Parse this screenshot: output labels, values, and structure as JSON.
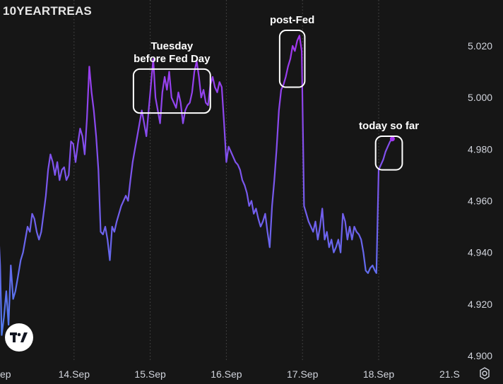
{
  "symbol": "10YEARTREAS",
  "colors": {
    "background": "#161616",
    "line_start": "#4f7bec",
    "line_end": "#a335ee",
    "gridline": "#4a4a4a",
    "annotation_box": "#ffffff"
  },
  "icons": {
    "logo": "tradingview-logo-icon",
    "settings": "gear-icon"
  },
  "chart_data": {
    "type": "line",
    "y_axis_position": "right",
    "ylim": [
      4.9,
      5.03
    ],
    "y_ticks": [
      "4.900",
      "4.920",
      "4.940",
      "4.960",
      "4.980",
      "5.000",
      "5.020"
    ],
    "x_ticks": [
      "ep",
      "14.Sep",
      "15.Sep",
      "16.Sep",
      "17.Sep",
      "18.Sep",
      "21.S"
    ],
    "x_tick_positions": [
      0,
      1,
      2,
      3,
      4,
      5,
      6
    ],
    "xlim": [
      0,
      6
    ],
    "grid": "vertical dotted at day boundaries",
    "series": [
      {
        "points": [
          [
            0.0,
            4.954
          ],
          [
            0.03,
            4.935
          ],
          [
            0.05,
            4.908
          ],
          [
            0.08,
            4.915
          ],
          [
            0.11,
            4.925
          ],
          [
            0.14,
            4.912
          ],
          [
            0.17,
            4.935
          ],
          [
            0.2,
            4.922
          ],
          [
            0.23,
            4.925
          ],
          [
            0.26,
            4.93
          ],
          [
            0.3,
            4.937
          ],
          [
            0.33,
            4.94
          ],
          [
            0.36,
            4.945
          ],
          [
            0.39,
            4.95
          ],
          [
            0.42,
            4.948
          ],
          [
            0.45,
            4.955
          ],
          [
            0.48,
            4.953
          ],
          [
            0.51,
            4.948
          ],
          [
            0.54,
            4.945
          ],
          [
            0.57,
            4.948
          ],
          [
            0.6,
            4.955
          ],
          [
            0.63,
            4.962
          ],
          [
            0.66,
            4.972
          ],
          [
            0.69,
            4.978
          ],
          [
            0.72,
            4.975
          ],
          [
            0.75,
            4.97
          ],
          [
            0.78,
            4.975
          ],
          [
            0.81,
            4.968
          ],
          [
            0.84,
            4.972
          ],
          [
            0.87,
            4.973
          ],
          [
            0.9,
            4.968
          ],
          [
            0.93,
            4.97
          ],
          [
            0.96,
            4.983
          ],
          [
            0.99,
            4.982
          ],
          [
            1.02,
            4.975
          ],
          [
            1.05,
            4.982
          ],
          [
            1.08,
            4.988
          ],
          [
            1.11,
            4.985
          ],
          [
            1.14,
            4.978
          ],
          [
            1.17,
            4.992
          ],
          [
            1.2,
            5.012
          ],
          [
            1.23,
            5.002
          ],
          [
            1.26,
            4.995
          ],
          [
            1.29,
            4.985
          ],
          [
            1.32,
            4.972
          ],
          [
            1.35,
            4.948
          ],
          [
            1.38,
            4.947
          ],
          [
            1.41,
            4.95
          ],
          [
            1.44,
            4.945
          ],
          [
            1.47,
            4.937
          ],
          [
            1.5,
            4.95
          ],
          [
            1.53,
            4.948
          ],
          [
            1.56,
            4.952
          ],
          [
            1.59,
            4.955
          ],
          [
            1.62,
            4.958
          ],
          [
            1.65,
            4.96
          ],
          [
            1.68,
            4.962
          ],
          [
            1.71,
            4.96
          ],
          [
            1.74,
            4.968
          ],
          [
            1.77,
            4.975
          ],
          [
            1.8,
            4.98
          ],
          [
            1.83,
            4.985
          ],
          [
            1.86,
            4.99
          ],
          [
            1.89,
            4.995
          ],
          [
            1.92,
            4.99
          ],
          [
            1.95,
            4.985
          ],
          [
            1.98,
            4.995
          ],
          [
            2.01,
            5.005
          ],
          [
            2.04,
            5.015
          ],
          [
            2.07,
            5.0
          ],
          [
            2.1,
            4.995
          ],
          [
            2.13,
            4.99
          ],
          [
            2.16,
            5.002
          ],
          [
            2.19,
            5.008
          ],
          [
            2.22,
            5.003
          ],
          [
            2.25,
            5.01
          ],
          [
            2.28,
            5.0
          ],
          [
            2.31,
            4.998
          ],
          [
            2.34,
            4.996
          ],
          [
            2.37,
            5.002
          ],
          [
            2.4,
            4.998
          ],
          [
            2.43,
            4.99
          ],
          [
            2.46,
            4.995
          ],
          [
            2.49,
            4.997
          ],
          [
            2.52,
            4.998
          ],
          [
            2.55,
            5.002
          ],
          [
            2.58,
            5.01
          ],
          [
            2.61,
            5.014
          ],
          [
            2.64,
            5.008
          ],
          [
            2.67,
            5.0
          ],
          [
            2.7,
            5.003
          ],
          [
            2.73,
            4.998
          ],
          [
            2.76,
            4.997
          ],
          [
            2.79,
            5.005
          ],
          [
            2.82,
            5.008
          ],
          [
            2.85,
            5.004
          ],
          [
            2.88,
            5.002
          ],
          [
            2.91,
            5.006
          ],
          [
            2.94,
            5.004
          ],
          [
            2.97,
            4.99
          ],
          [
            3.0,
            4.975
          ],
          [
            3.03,
            4.981
          ],
          [
            3.06,
            4.979
          ],
          [
            3.09,
            4.977
          ],
          [
            3.12,
            4.975
          ],
          [
            3.15,
            4.974
          ],
          [
            3.18,
            4.972
          ],
          [
            3.21,
            4.968
          ],
          [
            3.24,
            4.966
          ],
          [
            3.27,
            4.963
          ],
          [
            3.3,
            4.958
          ],
          [
            3.33,
            4.96
          ],
          [
            3.36,
            4.955
          ],
          [
            3.39,
            4.957
          ],
          [
            3.42,
            4.953
          ],
          [
            3.45,
            4.95
          ],
          [
            3.48,
            4.952
          ],
          [
            3.51,
            4.955
          ],
          [
            3.54,
            4.948
          ],
          [
            3.57,
            4.942
          ],
          [
            3.6,
            4.958
          ],
          [
            3.63,
            4.968
          ],
          [
            3.66,
            4.98
          ],
          [
            3.69,
            4.995
          ],
          [
            3.72,
            5.003
          ],
          [
            3.75,
            5.005
          ],
          [
            3.78,
            5.008
          ],
          [
            3.81,
            5.012
          ],
          [
            3.84,
            5.015
          ],
          [
            3.87,
            5.02
          ],
          [
            3.9,
            5.018
          ],
          [
            3.93,
            5.022
          ],
          [
            3.96,
            5.024
          ],
          [
            3.99,
            5.018
          ],
          [
            4.02,
            4.958
          ],
          [
            4.05,
            4.955
          ],
          [
            4.08,
            4.952
          ],
          [
            4.11,
            4.95
          ],
          [
            4.14,
            4.948
          ],
          [
            4.17,
            4.952
          ],
          [
            4.2,
            4.945
          ],
          [
            4.23,
            4.95
          ],
          [
            4.26,
            4.957
          ],
          [
            4.29,
            4.945
          ],
          [
            4.32,
            4.948
          ],
          [
            4.35,
            4.942
          ],
          [
            4.38,
            4.945
          ],
          [
            4.41,
            4.94
          ],
          [
            4.44,
            4.942
          ],
          [
            4.47,
            4.945
          ],
          [
            4.5,
            4.94
          ],
          [
            4.53,
            4.955
          ],
          [
            4.56,
            4.952
          ],
          [
            4.59,
            4.945
          ],
          [
            4.62,
            4.95
          ],
          [
            4.65,
            4.945
          ],
          [
            4.68,
            4.95
          ],
          [
            4.71,
            4.948
          ],
          [
            4.74,
            4.947
          ],
          [
            4.77,
            4.945
          ],
          [
            4.8,
            4.94
          ],
          [
            4.83,
            4.933
          ],
          [
            4.86,
            4.932
          ],
          [
            4.89,
            4.934
          ],
          [
            4.92,
            4.935
          ],
          [
            4.95,
            4.933
          ],
          [
            4.97,
            4.932
          ],
          [
            4.99,
            4.958
          ],
          [
            5.0,
            4.972
          ],
          [
            5.03,
            4.974
          ],
          [
            5.06,
            4.976
          ],
          [
            5.09,
            4.979
          ],
          [
            5.12,
            4.981
          ],
          [
            5.15,
            4.983
          ],
          [
            5.18,
            4.984
          ]
        ]
      }
    ],
    "annotations": [
      {
        "lines": [
          "Tuesday",
          "before Fed Day"
        ],
        "x_range": [
          1.78,
          2.79
        ],
        "y_range": [
          4.994,
          5.011
        ]
      },
      {
        "lines": [
          "post-Fed"
        ],
        "x_range": [
          3.7,
          4.03
        ],
        "y_range": [
          5.004,
          5.026
        ]
      },
      {
        "lines": [
          "today so far"
        ],
        "x_range": [
          4.96,
          5.31
        ],
        "y_range": [
          4.972,
          4.985
        ]
      }
    ]
  }
}
